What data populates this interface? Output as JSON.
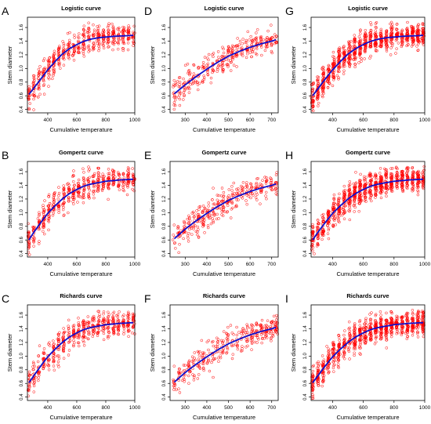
{
  "chart_data": [
    {
      "panel": "A",
      "type": "scatter",
      "title": "Logistic curve",
      "xlabel": "Cumulative temperature",
      "ylabel": "Stem diameter",
      "xlim": [
        260,
        1000
      ],
      "ylim": [
        0.35,
        1.75
      ],
      "xticks": [
        400,
        600,
        800,
        1000
      ],
      "yticks": [
        0.4,
        0.6,
        0.8,
        1.0,
        1.2,
        1.4,
        1.6
      ],
      "series": [
        {
          "values_desc": "observations",
          "color": "#ff0000"
        },
        {
          "color": "#0000cc"
        }
      ],
      "curve": {
        "x": [
          270,
          300,
          350,
          400,
          450,
          500,
          550,
          600,
          650,
          700,
          750,
          800,
          850,
          900,
          950,
          990
        ],
        "y": [
          0.62,
          0.7,
          0.84,
          0.98,
          1.1,
          1.21,
          1.29,
          1.35,
          1.4,
          1.43,
          1.45,
          1.46,
          1.47,
          1.475,
          1.48,
          1.485
        ]
      },
      "density": 520
    },
    {
      "panel": "D",
      "type": "scatter",
      "title": "Logistic curve",
      "xlabel": "Cumulative temperature",
      "ylabel": "Stem diameter",
      "xlim": [
        230,
        730
      ],
      "ylim": [
        0.35,
        1.75
      ],
      "xticks": [
        300,
        400,
        500,
        600,
        700
      ],
      "yticks": [
        0.4,
        0.6,
        0.8,
        1.0,
        1.2,
        1.4,
        1.6
      ],
      "series": [
        {
          "values_desc": "observations",
          "color": "#ff0000"
        },
        {
          "color": "#0000cc"
        }
      ],
      "curve": {
        "x": [
          250,
          300,
          350,
          400,
          450,
          500,
          550,
          600,
          650,
          700,
          720
        ],
        "y": [
          0.63,
          0.76,
          0.88,
          0.99,
          1.09,
          1.18,
          1.25,
          1.31,
          1.36,
          1.4,
          1.42
        ]
      },
      "density": 340
    },
    {
      "panel": "G",
      "type": "scatter",
      "title": "Logistic curve",
      "xlabel": "Cumulative temperature",
      "ylabel": "Stem diameter",
      "xlim": [
        260,
        1000
      ],
      "ylim": [
        0.35,
        1.75
      ],
      "xticks": [
        400,
        600,
        800,
        1000
      ],
      "yticks": [
        0.4,
        0.6,
        0.8,
        1.0,
        1.2,
        1.4,
        1.6
      ],
      "series": [
        {
          "values_desc": "observations",
          "color": "#ff0000"
        },
        {
          "color": "#0000cc"
        }
      ],
      "curve": {
        "x": [
          270,
          300,
          350,
          400,
          450,
          500,
          550,
          600,
          650,
          700,
          750,
          800,
          850,
          900,
          950,
          990
        ],
        "y": [
          0.6,
          0.69,
          0.84,
          0.98,
          1.1,
          1.21,
          1.29,
          1.35,
          1.4,
          1.43,
          1.45,
          1.46,
          1.47,
          1.475,
          1.48,
          1.485
        ]
      },
      "density": 900
    },
    {
      "panel": "B",
      "type": "scatter",
      "title": "Gompertz curve",
      "xlabel": "Cumulative temperature",
      "ylabel": "Stem diameter",
      "xlim": [
        260,
        1000
      ],
      "ylim": [
        0.35,
        1.75
      ],
      "xticks": [
        400,
        600,
        800,
        1000
      ],
      "yticks": [
        0.4,
        0.6,
        0.8,
        1.0,
        1.2,
        1.4,
        1.6
      ],
      "series": [
        {
          "values_desc": "observations",
          "color": "#ff0000"
        },
        {
          "color": "#0000cc"
        }
      ],
      "curve": {
        "x": [
          270,
          300,
          350,
          400,
          450,
          500,
          550,
          600,
          650,
          700,
          750,
          800,
          850,
          900,
          950,
          990
        ],
        "y": [
          0.6,
          0.7,
          0.85,
          0.99,
          1.1,
          1.2,
          1.28,
          1.34,
          1.39,
          1.42,
          1.44,
          1.46,
          1.47,
          1.48,
          1.485,
          1.49
        ]
      },
      "density": 520
    },
    {
      "panel": "E",
      "type": "scatter",
      "title": "Gompertz curve",
      "xlabel": "Cumulative temperature",
      "ylabel": "Stem diameter",
      "xlim": [
        230,
        730
      ],
      "ylim": [
        0.35,
        1.75
      ],
      "xticks": [
        300,
        400,
        500,
        600,
        700
      ],
      "yticks": [
        0.4,
        0.6,
        0.8,
        1.0,
        1.2,
        1.4,
        1.6
      ],
      "series": [
        {
          "values_desc": "observations",
          "color": "#ff0000"
        },
        {
          "color": "#0000cc"
        }
      ],
      "curve": {
        "x": [
          250,
          300,
          350,
          400,
          450,
          500,
          550,
          600,
          650,
          700,
          720
        ],
        "y": [
          0.62,
          0.76,
          0.88,
          0.99,
          1.09,
          1.18,
          1.25,
          1.31,
          1.36,
          1.4,
          1.42
        ]
      },
      "density": 340
    },
    {
      "panel": "H",
      "type": "scatter",
      "title": "Gompertz curve",
      "xlabel": "Cumulative temperature",
      "ylabel": "Stem diameter",
      "xlim": [
        260,
        1000
      ],
      "ylim": [
        0.35,
        1.75
      ],
      "xticks": [
        400,
        600,
        800,
        1000
      ],
      "yticks": [
        0.4,
        0.6,
        0.8,
        1.0,
        1.2,
        1.4,
        1.6
      ],
      "series": [
        {
          "values_desc": "observations",
          "color": "#ff0000"
        },
        {
          "color": "#0000cc"
        }
      ],
      "curve": {
        "x": [
          270,
          300,
          350,
          400,
          450,
          500,
          550,
          600,
          650,
          700,
          750,
          800,
          850,
          900,
          950,
          990
        ],
        "y": [
          0.6,
          0.7,
          0.85,
          0.99,
          1.1,
          1.2,
          1.28,
          1.34,
          1.39,
          1.42,
          1.44,
          1.46,
          1.47,
          1.48,
          1.485,
          1.49
        ]
      },
      "density": 900
    },
    {
      "panel": "C",
      "type": "scatter",
      "title": "Richards curve",
      "xlabel": "Cumulative temperature",
      "ylabel": "Stem diameter",
      "xlim": [
        260,
        1000
      ],
      "ylim": [
        0.35,
        1.75
      ],
      "xticks": [
        400,
        600,
        800,
        1000
      ],
      "yticks": [
        0.4,
        0.6,
        0.8,
        1.0,
        1.2,
        1.4,
        1.6
      ],
      "series": [
        {
          "values_desc": "observations",
          "color": "#ff0000"
        },
        {
          "color": "#0000cc"
        }
      ],
      "curve": {
        "x": [
          270,
          300,
          350,
          400,
          450,
          500,
          550,
          600,
          650,
          700,
          750,
          800,
          850,
          900,
          950,
          990
        ],
        "y": [
          0.61,
          0.7,
          0.85,
          0.99,
          1.1,
          1.2,
          1.28,
          1.34,
          1.39,
          1.42,
          1.44,
          1.46,
          1.47,
          1.48,
          1.485,
          1.49
        ]
      },
      "density": 520
    },
    {
      "panel": "F",
      "type": "scatter",
      "title": "Richards curve",
      "xlabel": "Cumulative temperature",
      "ylabel": "Stem diameter",
      "xlim": [
        230,
        730
      ],
      "ylim": [
        0.35,
        1.75
      ],
      "xticks": [
        300,
        400,
        500,
        600,
        700
      ],
      "yticks": [
        0.4,
        0.6,
        0.8,
        1.0,
        1.2,
        1.4,
        1.6
      ],
      "series": [
        {
          "values_desc": "observations",
          "color": "#ff0000"
        },
        {
          "color": "#0000cc"
        }
      ],
      "curve": {
        "x": [
          250,
          300,
          350,
          400,
          450,
          500,
          550,
          600,
          650,
          700,
          720
        ],
        "y": [
          0.62,
          0.76,
          0.88,
          0.99,
          1.09,
          1.18,
          1.25,
          1.31,
          1.36,
          1.4,
          1.42
        ]
      },
      "density": 340
    },
    {
      "panel": "I",
      "type": "scatter",
      "title": "Richards curve",
      "xlabel": "Cumulative temperature",
      "ylabel": "Stem diameter",
      "xlim": [
        260,
        1000
      ],
      "ylim": [
        0.35,
        1.75
      ],
      "xticks": [
        400,
        600,
        800,
        1000
      ],
      "yticks": [
        0.4,
        0.6,
        0.8,
        1.0,
        1.2,
        1.4,
        1.6
      ],
      "series": [
        {
          "values_desc": "observations",
          "color": "#ff0000"
        },
        {
          "color": "#0000cc"
        }
      ],
      "curve": {
        "x": [
          270,
          300,
          350,
          400,
          450,
          500,
          550,
          600,
          650,
          700,
          750,
          800,
          850,
          900,
          950,
          990
        ],
        "y": [
          0.61,
          0.7,
          0.85,
          0.99,
          1.1,
          1.2,
          1.28,
          1.34,
          1.39,
          1.42,
          1.44,
          1.46,
          1.47,
          1.48,
          1.485,
          1.49
        ]
      },
      "density": 900
    }
  ]
}
